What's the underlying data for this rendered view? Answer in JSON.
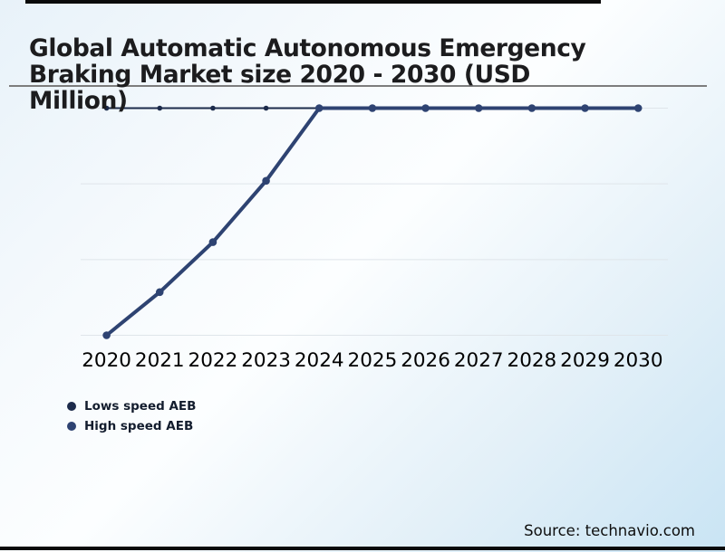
{
  "page": {
    "title_lines": [
      "Global Automatic Autonomous Emergency",
      "Braking Market size 2020 - 2030 (USD",
      "Million)"
    ],
    "source": "Source: technavio.com"
  },
  "colors": {
    "accent_bar": "#0a0a0a",
    "divider": "#7d7d7d",
    "gridline": "#dfe5ea",
    "lows_speed": "#1c2b4b",
    "high_speed": "#2e4372",
    "axis_label": "#000000"
  },
  "chart_data": {
    "type": "line",
    "title": "Global Automatic Autonomous Emergency Braking Market size 2020 - 2030 (USD Million)",
    "categories": [
      "2020",
      "2021",
      "2022",
      "2023",
      "2024",
      "2025",
      "2026",
      "2027",
      "2028",
      "2029",
      "2030"
    ],
    "series": [
      {
        "name": "Lows speed AEB",
        "color": "#1c2b4b",
        "values": [
          100,
          100,
          100,
          100,
          100,
          100,
          100,
          100,
          100,
          100,
          100
        ]
      },
      {
        "name": "High speed AEB",
        "color": "#2e4372",
        "values": [
          0,
          19,
          41,
          68,
          100,
          100,
          100,
          100,
          100,
          100,
          100
        ]
      }
    ],
    "xlabel": "",
    "ylabel": "",
    "ylim": [
      0,
      100
    ],
    "grid": true,
    "gridline_count": 4,
    "legend_position": "bottom-left",
    "note": "No y-axis tick labels are shown in the image; series values are relative estimates (0-100) read from pixel positions between the bottom and top gridlines."
  }
}
